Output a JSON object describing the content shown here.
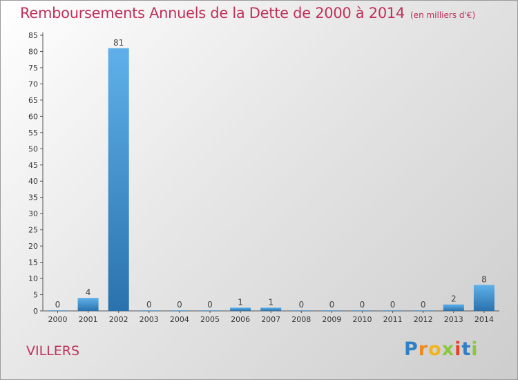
{
  "chart_data": {
    "type": "bar",
    "title": "Remboursements Annuels de la Dette de 2000 à 2014",
    "subtitle": "(en milliers d'€)",
    "categories": [
      "2000",
      "2001",
      "2002",
      "2003",
      "2004",
      "2005",
      "2006",
      "2007",
      "2008",
      "2009",
      "2010",
      "2011",
      "2012",
      "2013",
      "2014"
    ],
    "values": [
      0,
      4,
      81,
      0,
      0,
      0,
      1,
      1,
      0,
      0,
      0,
      0,
      0,
      2,
      8
    ],
    "yticks": [
      0,
      5,
      10,
      15,
      20,
      25,
      30,
      35,
      40,
      45,
      50,
      55,
      60,
      65,
      70,
      75,
      80,
      85
    ],
    "ylim": [
      0,
      85
    ],
    "xlabel": "",
    "ylabel": "",
    "grid": false,
    "colors": {
      "bar": "#3a8fd0",
      "bar_light": "#5fb0ea",
      "bar_dark": "#2a72ad",
      "title": "#c0305a",
      "text": "#333333"
    }
  },
  "footer": {
    "town": "VILLERS",
    "logo_letters": [
      "P",
      "r",
      "o",
      "x",
      "i",
      "t",
      "i"
    ],
    "logo_colors": [
      "#2f7fc5",
      "#f08a1c",
      "#f0b51e",
      "#8cc63f",
      "#e8412c",
      "#2f7fc5",
      "#8cc63f"
    ]
  }
}
